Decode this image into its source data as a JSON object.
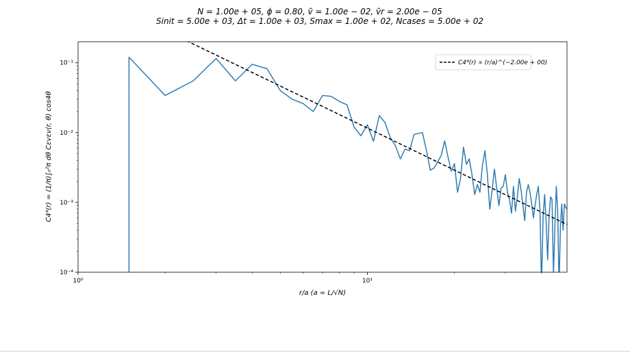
{
  "chart_data": {
    "type": "line",
    "title_line1": "N = 1.00e + 05, ϕ = 0.80, ṽ = 1.00e − 02, ṽr = 2.00e − 05",
    "title_line2": "Sinit = 5.00e + 03, Δt = 1.00e + 03, Smax = 1.00e + 02, Ncases = 5.00e + 02",
    "xlabel": "r/a (a = L/√N)",
    "ylabel": "C4⁴(r) = (1/π)∫₀²π dθ Cεvεv(r, θ) cos4θ",
    "xscale": "log",
    "yscale": "log",
    "xlim": [
      1.0,
      49.0
    ],
    "ylim": [
      0.0001,
      0.2
    ],
    "x_ticks": [
      {
        "value": 1,
        "label": "10⁰"
      },
      {
        "value": 10,
        "label": "10¹"
      }
    ],
    "y_ticks": [
      {
        "value": 0.0001,
        "label": "10⁻⁴"
      },
      {
        "value": 0.001,
        "label": "10⁻³"
      },
      {
        "value": 0.01,
        "label": "10⁻²"
      },
      {
        "value": 0.1,
        "label": "10⁻¹"
      }
    ],
    "grid": false,
    "legend_position": "top-right",
    "series": [
      {
        "name": "",
        "style": "solid",
        "color": "#2f7bb0",
        "points": [
          [
            1.5,
            6e-05
          ],
          [
            1.5,
            0.0034
          ],
          [
            1.5,
            0.12
          ],
          [
            2.0,
            0.034
          ],
          [
            2.5,
            0.055
          ],
          [
            3.0,
            0.115
          ],
          [
            3.5,
            0.055
          ],
          [
            4.0,
            0.095
          ],
          [
            4.5,
            0.082
          ],
          [
            5.0,
            0.04
          ],
          [
            5.5,
            0.03
          ],
          [
            6.0,
            0.026
          ],
          [
            6.5,
            0.02
          ],
          [
            7.0,
            0.034
          ],
          [
            7.5,
            0.033
          ],
          [
            8.0,
            0.028
          ],
          [
            8.5,
            0.025
          ],
          [
            9.0,
            0.012
          ],
          [
            9.5,
            0.009
          ],
          [
            10.0,
            0.013
          ],
          [
            10.5,
            0.0075
          ],
          [
            11.0,
            0.0175
          ],
          [
            11.5,
            0.014
          ],
          [
            12.0,
            0.0085
          ],
          [
            12.5,
            0.0065
          ],
          [
            13.0,
            0.0042
          ],
          [
            13.5,
            0.0058
          ],
          [
            14.0,
            0.0055
          ],
          [
            14.5,
            0.0094
          ],
          [
            15.5,
            0.01
          ],
          [
            16.0,
            0.0056
          ],
          [
            16.5,
            0.0029
          ],
          [
            17.0,
            0.0031
          ],
          [
            17.5,
            0.0038
          ],
          [
            18.0,
            0.0047
          ],
          [
            18.5,
            0.0076
          ],
          [
            19.0,
            0.0045
          ],
          [
            19.5,
            0.0028
          ],
          [
            20.0,
            0.0036
          ],
          [
            20.5,
            0.0014
          ],
          [
            21.0,
            0.0022
          ],
          [
            21.5,
            0.0062
          ],
          [
            22.0,
            0.0035
          ],
          [
            22.5,
            0.0042
          ],
          [
            23.0,
            0.0025
          ],
          [
            23.5,
            0.0013
          ],
          [
            24.0,
            0.0018
          ],
          [
            24.5,
            0.0014
          ],
          [
            25.0,
            0.0034
          ],
          [
            25.5,
            0.0055
          ],
          [
            26.0,
            0.0025
          ],
          [
            26.5,
            0.0008
          ],
          [
            27.0,
            0.0015
          ],
          [
            27.5,
            0.003
          ],
          [
            28.0,
            0.0016
          ],
          [
            28.5,
            0.0009
          ],
          [
            29.0,
            0.0016
          ],
          [
            29.5,
            0.0017
          ],
          [
            30.0,
            0.0025
          ],
          [
            30.5,
            0.0014
          ],
          [
            31.0,
            0.0011
          ],
          [
            31.5,
            0.0007
          ],
          [
            32.0,
            0.0017
          ],
          [
            32.5,
            0.00075
          ],
          [
            33.0,
            0.0012
          ],
          [
            33.5,
            0.0022
          ],
          [
            34.0,
            0.0015
          ],
          [
            34.5,
            0.0009
          ],
          [
            35.0,
            0.00055
          ],
          [
            35.5,
            0.0014
          ],
          [
            36.0,
            0.0018
          ],
          [
            36.5,
            0.0014
          ],
          [
            37.0,
            0.00095
          ],
          [
            37.5,
            0.0006
          ],
          [
            38.0,
            0.0009
          ],
          [
            38.5,
            0.0013
          ],
          [
            39.0,
            0.0017
          ],
          [
            39.5,
            0.0008
          ],
          [
            40.0,
            6e-05
          ],
          [
            40.5,
            0.0006
          ],
          [
            41.0,
            0.0013
          ],
          [
            41.5,
            0.00055
          ],
          [
            42.0,
            0.00015
          ],
          [
            42.5,
            0.00065
          ],
          [
            43.0,
            0.0012
          ],
          [
            43.5,
            0.0011
          ],
          [
            44.0,
            9e-05
          ],
          [
            44.5,
            0.00045
          ],
          [
            45.0,
            0.0017
          ],
          [
            45.5,
            0.00075
          ],
          [
            46.0,
            6e-05
          ],
          [
            46.5,
            0.00045
          ],
          [
            47.0,
            0.00095
          ],
          [
            47.5,
            0.0004
          ],
          [
            48.0,
            0.00095
          ],
          [
            48.5,
            0.00085
          ],
          [
            49.0,
            0.0008
          ]
        ]
      },
      {
        "name": "C4⁴(r) ∝ (r/a)^(−2.00e + 00)",
        "style": "dashed",
        "color": "#000000",
        "amplitude": 1.16,
        "exponent": -2.0
      }
    ]
  }
}
